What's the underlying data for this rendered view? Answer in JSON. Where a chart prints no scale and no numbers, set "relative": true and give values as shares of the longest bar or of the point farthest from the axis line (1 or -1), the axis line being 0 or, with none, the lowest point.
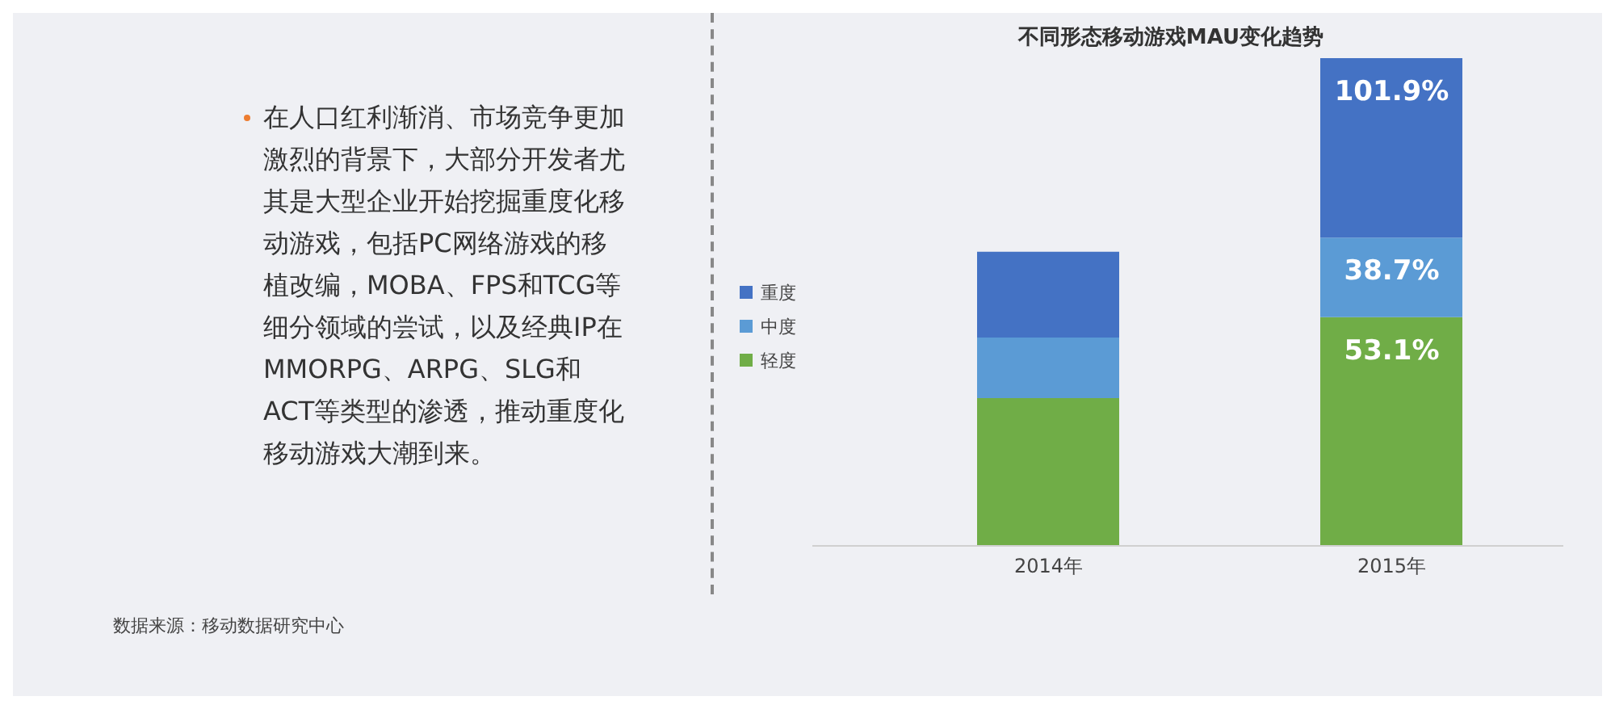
{
  "chart_data": {
    "type": "bar",
    "title": "不同形态移动游戏MAU变化趋势",
    "categories": [
      "2014年",
      "2015年"
    ],
    "stacked": true,
    "relative": true,
    "legend": "left",
    "grid": false,
    "series": [
      {
        "name": "轻度",
        "color": "#70ad47",
        "values": [
          0.303,
          0.469
        ]
      },
      {
        "name": "中度",
        "color": "#5b9bd5",
        "values": [
          0.124,
          0.163
        ]
      },
      {
        "name": "重度",
        "color": "#4472c4",
        "values": [
          0.176,
          0.368
        ]
      }
    ],
    "annotations": [
      "在人口红利渐消、市场竞争更加激烈的背景下，大部分开发者尤其是大型企业开始挖掘重度化移动游戏，包括PC网络游戏的移植改编，MOBA、FPS和TCG等细分领域的尝试，以及经典IP在MMORPG、ARPG、SLG和ACT等类型的渗透，推动重度化移动游戏大潮到来。",
      "数据来源：移动数据研究中心",
      {
        "text": "53.1%",
        "x": "2015年",
        "y": 0.469
      },
      {
        "text": "38.7%",
        "x": "2015年",
        "y": 0.632
      },
      {
        "text": "101.9%",
        "x": "2015年",
        "y": 1.0
      }
    ]
  }
}
